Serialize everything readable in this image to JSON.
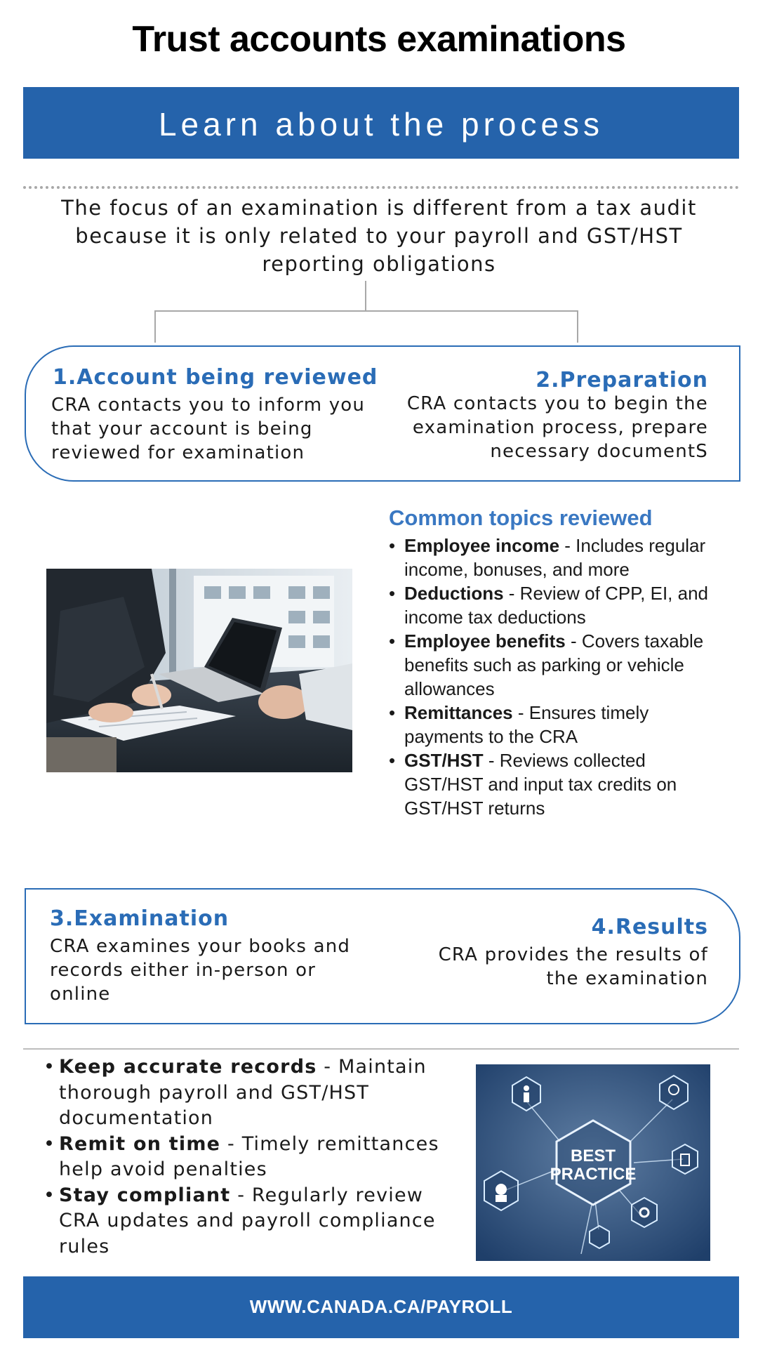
{
  "title": "Trust accounts examinations",
  "banner": "Learn about the process",
  "intro": "The focus of an examination is different from a tax audit because it is only related to your payroll and GST/HST reporting obligations",
  "steps": [
    {
      "title": "1.Account being reviewed",
      "body": "CRA contacts you to inform you that your account is being reviewed for examination"
    },
    {
      "title": "2.Preparation",
      "body": "CRA contacts you to begin the examination process, prepare necessary documentS"
    },
    {
      "title": "3.Examination",
      "body": "CRA examines your books and records either in-person or online"
    },
    {
      "title": "4.Results",
      "body": "CRA provides the results of the examination"
    }
  ],
  "topics": {
    "heading": "Common topics reviewed",
    "items": [
      {
        "label": "Employee income",
        "text": " - Includes regular income, bonuses, and more"
      },
      {
        "label": "Deductions",
        "text": " - Review of CPP, EI, and income tax deductions"
      },
      {
        "label": "Employee benefits",
        "text": " - Covers taxable benefits such as parking or vehicle allowances"
      },
      {
        "label": "Remittances",
        "text": " - Ensures timely payments to the CRA"
      },
      {
        "label": "GST/HST",
        "text": " - Reviews collected GST/HST and input tax credits on GST/HST returns"
      }
    ]
  },
  "tips": [
    {
      "label": "Keep accurate records",
      "text": " - Maintain thorough payroll and GST/HST documentation"
    },
    {
      "label": "Remit on time",
      "text": " - Timely remittances help avoid penalties"
    },
    {
      "label": "Stay compliant",
      "text": " - Regularly review CRA updates and payroll compliance rules"
    }
  ],
  "best_practice_image": {
    "line1": "BEST",
    "line2": "PRACTICE"
  },
  "footer": "WWW.CANADA.CA/PAYROLL",
  "colors": {
    "primary": "#2563ab",
    "accent": "#2a6cb6",
    "heading_blue": "#3a78c2"
  }
}
